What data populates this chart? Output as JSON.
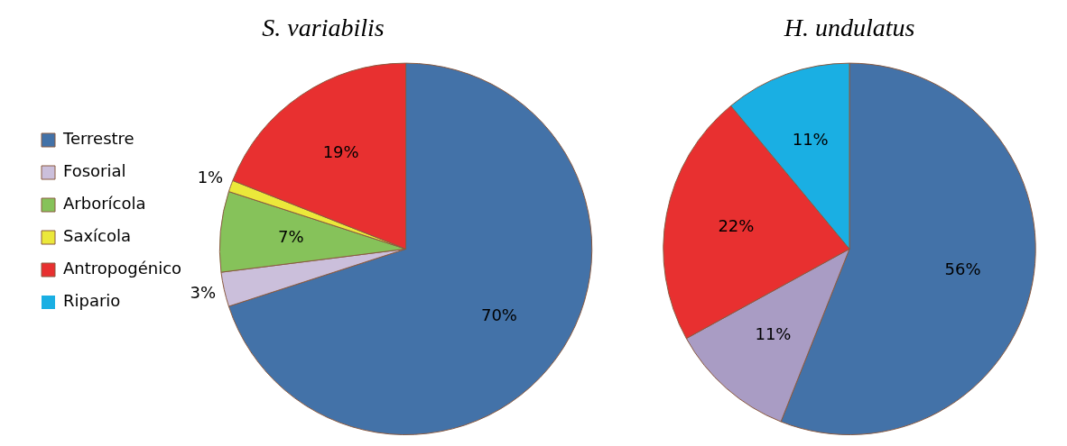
{
  "chart_data": [
    {
      "type": "pie",
      "title": "S. variabilis",
      "categories": [
        "Terrestre",
        "Fosorial",
        "Arborícola",
        "Saxícola",
        "Antropogénico",
        "Ripario"
      ],
      "values": [
        70,
        3,
        7,
        1,
        19,
        0
      ],
      "colors": [
        "#4372a8",
        "#cbbfdb",
        "#86c25a",
        "#ebe83a",
        "#e83030",
        "#1aafe3"
      ],
      "value_labels": [
        "70%",
        "3%",
        "7%",
        "1%",
        "19%",
        null
      ],
      "legend": "left"
    },
    {
      "type": "pie",
      "title": "H. undulatus",
      "categories": [
        null,
        null,
        null,
        null,
        null,
        null
      ],
      "values": [
        56,
        11,
        0,
        0,
        22,
        11
      ],
      "colors": [
        "#4372a8",
        "#a99cc4",
        "#86c25a",
        "#ebe83a",
        "#e83030",
        "#1aafe3"
      ],
      "value_labels": [
        "56%",
        "11%",
        null,
        null,
        "22%",
        "11%"
      ]
    }
  ]
}
